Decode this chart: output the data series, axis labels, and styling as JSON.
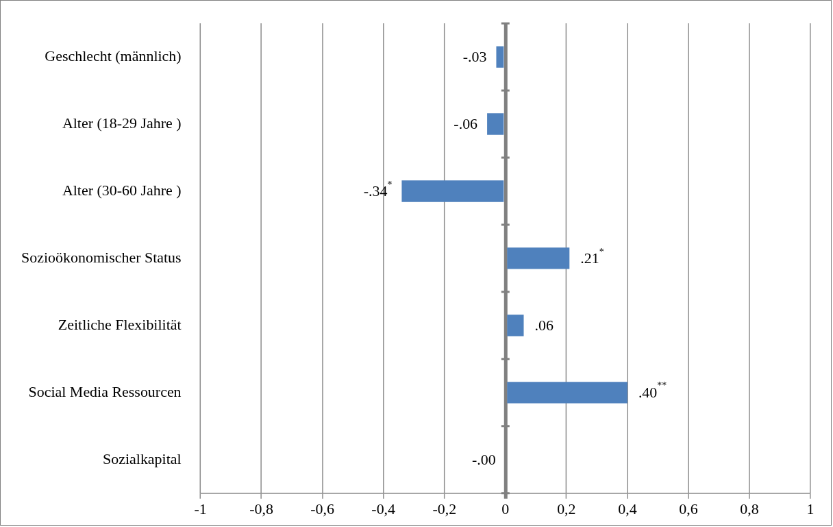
{
  "chart_data": {
    "type": "bar",
    "orientation": "horizontal",
    "categories": [
      "Geschlecht (männlich)",
      "Alter (18-29 Jahre )",
      "Alter (30-60 Jahre )",
      "Sozioökonomischer Status",
      "Zeitliche Flexibilität",
      "Social Media Ressourcen",
      "Sozialkapital"
    ],
    "values": [
      -0.03,
      -0.06,
      -0.34,
      0.21,
      0.06,
      0.4,
      0.0
    ],
    "value_labels": [
      "-.03",
      "-.06",
      "-.34$^{*}$",
      ".21$^{*}$",
      ".06",
      ".40$^{**}$",
      "-.00"
    ],
    "color": "#4f81bd",
    "xlim": [
      -1,
      1
    ],
    "xticks": [
      -1,
      {
        "value": -0.8,
        "label": "-0,8"
      },
      {
        "value": -0.6,
        "label": "-0,6"
      },
      {
        "value": -0.4,
        "label": "-0,4"
      },
      {
        "value": -0.2,
        "label": "-0,2"
      },
      0,
      {
        "value": 0.2,
        "label": "0,2"
      },
      {
        "value": 0.4,
        "label": "0,4"
      },
      {
        "value": 0.6,
        "label": "0,6"
      },
      {
        "value": 0.8,
        "label": "0,8"
      },
      1
    ],
    "grid": "x",
    "legend": false
  }
}
